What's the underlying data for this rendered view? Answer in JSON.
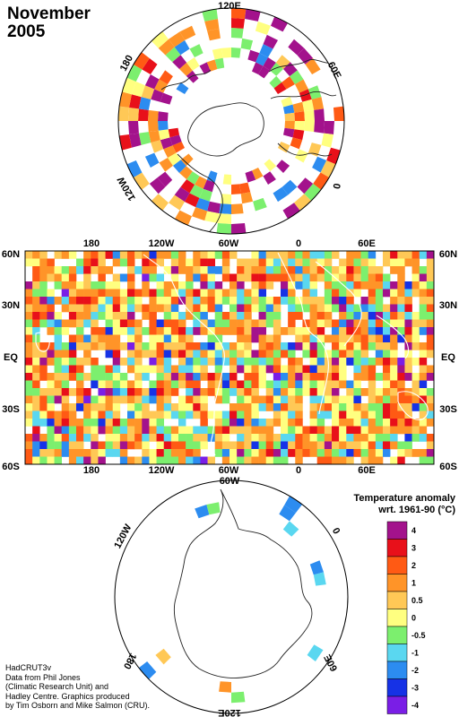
{
  "title": {
    "month": "November",
    "year": "2005"
  },
  "legend": {
    "heading_line1": "Temperature anomaly",
    "heading_line2": "wrt. 1961-90  (°C)",
    "bins": [
      {
        "label": "4",
        "color": "#a3128c"
      },
      {
        "label": "3",
        "color": "#e8101a"
      },
      {
        "label": "2",
        "color": "#ff5a14"
      },
      {
        "label": "1",
        "color": "#ff9428"
      },
      {
        "label": "0.5",
        "color": "#ffc856"
      },
      {
        "label": "0",
        "color": "#ffff80"
      },
      {
        "label": "-0.5",
        "color": "#7cef6e"
      },
      {
        "label": "-1",
        "color": "#5ad7f0"
      },
      {
        "label": "-2",
        "color": "#2c8cf0"
      },
      {
        "label": "-3",
        "color": "#1632e6"
      },
      {
        "label": "-4",
        "color": "#7a1ee6"
      }
    ]
  },
  "map_main": {
    "lon_labels": [
      "180",
      "120W",
      "60W",
      "0",
      "60E"
    ],
    "lat_labels_left": [
      "60N",
      "30N",
      "EQ",
      "30S",
      "60S"
    ],
    "lat_labels_right": [
      "60N",
      "30N",
      "EQ",
      "30S",
      "60S"
    ]
  },
  "north_polar": {
    "labels": [
      "120E",
      "60E",
      "0",
      "120W",
      "180"
    ]
  },
  "south_polar": {
    "labels": [
      "120W",
      "60W",
      "0",
      "60E",
      "120E",
      "180"
    ]
  },
  "credits": [
    "HadCRUT3v",
    "Data from Phil Jones",
    "(Climatic Research Unit) and",
    "Hadley Centre.  Graphics produced",
    "by Tim Osborn and Mike Salmon (CRU)."
  ]
}
